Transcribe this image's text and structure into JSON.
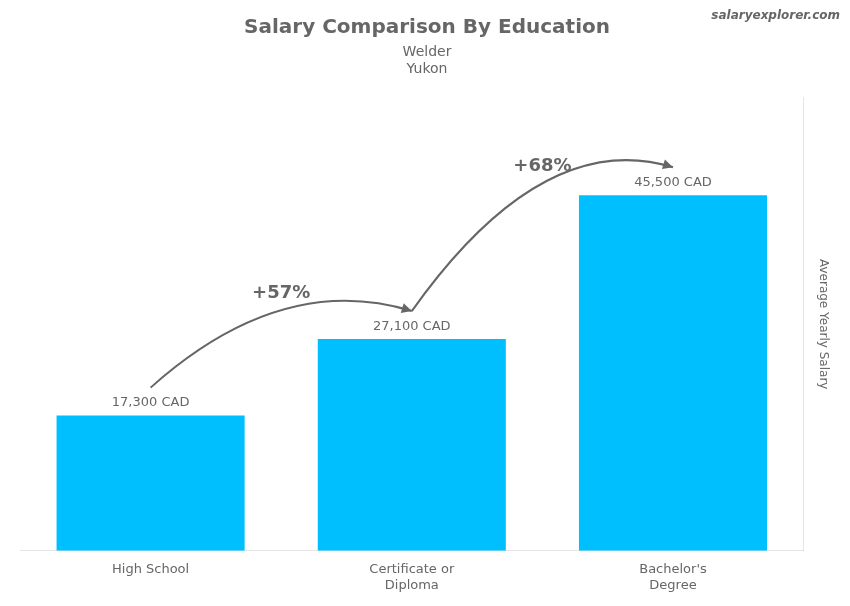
{
  "chart_data": {
    "type": "bar",
    "title": "Salary Comparison By Education",
    "subtitle": [
      "Welder",
      "Yukon"
    ],
    "ylabel": "Average Yearly Salary",
    "categories": [
      "High School",
      "Certificate or\nDiploma",
      "Bachelor's\nDegree"
    ],
    "values": [
      17300,
      27100,
      45500
    ],
    "value_labels": [
      "17,300 CAD",
      "27,100 CAD",
      "45,500 CAD"
    ],
    "data_labels": true,
    "change_labels": [
      "+57%",
      "+68%"
    ],
    "annotations": [
      "salaryexplorer.com"
    ],
    "color": "#00BFFF",
    "ylim": [
      0,
      58000
    ],
    "tick_labels": "x",
    "grid": false
  }
}
